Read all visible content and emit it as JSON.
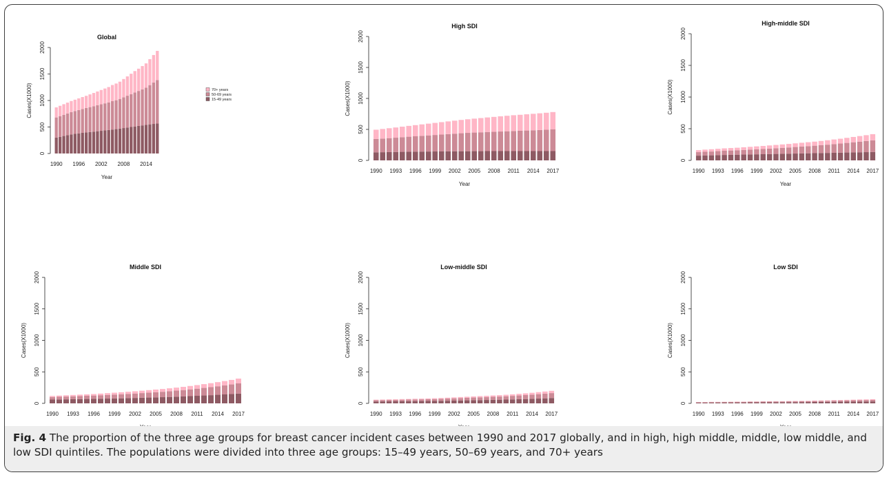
{
  "colors": {
    "c1549": "#8e5a63",
    "c5069": "#cc8a96",
    "c70": "#ffb6c6"
  },
  "caption": {
    "label": "Fig. 4",
    "text": "The proportion of the three age groups for breast cancer incident cases between 1990 and 2017 globally, and in high, high middle, middle, low middle, and low SDI quintiles. The populations were divided into three age groups: 15–49 years, 50–69 years, and 70+ years"
  },
  "legend": {
    "items": [
      {
        "label": "70+ years",
        "color": "#ffb6c6"
      },
      {
        "label": "50-69 years",
        "color": "#cc8a96"
      },
      {
        "label": "15-49 years",
        "color": "#8e5a63"
      }
    ]
  },
  "chart_data": [
    {
      "type": "bar",
      "stacked": true,
      "title": "Global",
      "xlabel": "Year",
      "ylabel": "Cases(X1000)",
      "ylim": [
        0,
        2000
      ],
      "yticks": [
        0,
        500,
        1000,
        1500,
        2000
      ],
      "xtick_labels": [
        "1990",
        "1996",
        "2002",
        "2008",
        "2014"
      ],
      "categories": [
        "1990",
        "1991",
        "1992",
        "1993",
        "1994",
        "1995",
        "1996",
        "1997",
        "1998",
        "1999",
        "2000",
        "2001",
        "2002",
        "2003",
        "2004",
        "2005",
        "2006",
        "2007",
        "2008",
        "2009",
        "2010",
        "2011",
        "2012",
        "2013",
        "2014",
        "2015",
        "2016",
        "2017"
      ],
      "series": [
        {
          "name": "15-49 years",
          "values": [
            300,
            315,
            330,
            345,
            360,
            370,
            380,
            390,
            398,
            405,
            412,
            420,
            428,
            436,
            444,
            452,
            460,
            470,
            480,
            490,
            500,
            510,
            520,
            530,
            540,
            550,
            558,
            566
          ]
        },
        {
          "name": "50-69 years",
          "values": [
            380,
            390,
            400,
            410,
            420,
            430,
            440,
            450,
            460,
            470,
            480,
            490,
            500,
            510,
            520,
            535,
            545,
            560,
            580,
            600,
            620,
            640,
            660,
            680,
            700,
            740,
            780,
            820
          ]
        },
        {
          "name": "70+ years",
          "values": [
            190,
            195,
            200,
            205,
            210,
            215,
            220,
            225,
            230,
            240,
            250,
            260,
            270,
            280,
            290,
            305,
            315,
            325,
            345,
            365,
            385,
            405,
            420,
            440,
            460,
            490,
            520,
            550
          ]
        }
      ]
    },
    {
      "type": "bar",
      "stacked": true,
      "title": "High SDI",
      "xlabel": "Year",
      "ylabel": "Cases(X1000)",
      "ylim": [
        0,
        2000
      ],
      "yticks": [
        0,
        500,
        1000,
        1500,
        2000
      ],
      "xtick_labels": [
        "1990",
        "1993",
        "1996",
        "1999",
        "2002",
        "2005",
        "2008",
        "2011",
        "2014",
        "2017"
      ],
      "categories": [
        "1990",
        "1991",
        "1992",
        "1993",
        "1994",
        "1995",
        "1996",
        "1997",
        "1998",
        "1999",
        "2000",
        "2001",
        "2002",
        "2003",
        "2004",
        "2005",
        "2006",
        "2007",
        "2008",
        "2009",
        "2010",
        "2011",
        "2012",
        "2013",
        "2014",
        "2015",
        "2016",
        "2017"
      ],
      "series": [
        {
          "name": "15-49 years",
          "values": [
            130,
            132,
            134,
            136,
            138,
            140,
            141,
            142,
            143,
            144,
            145,
            146,
            147,
            148,
            148,
            149,
            149,
            150,
            150,
            150,
            150,
            150,
            150,
            150,
            150,
            150,
            150,
            150
          ]
        },
        {
          "name": "50-69 years",
          "values": [
            215,
            220,
            225,
            230,
            236,
            242,
            248,
            254,
            260,
            266,
            272,
            278,
            284,
            290,
            296,
            300,
            304,
            308,
            312,
            316,
            320,
            324,
            328,
            332,
            336,
            340,
            345,
            350
          ]
        },
        {
          "name": "70+ years",
          "values": [
            150,
            155,
            160,
            165,
            170,
            175,
            180,
            185,
            190,
            195,
            200,
            205,
            210,
            215,
            220,
            225,
            230,
            235,
            240,
            245,
            250,
            255,
            258,
            262,
            266,
            270,
            274,
            280
          ]
        }
      ]
    },
    {
      "type": "bar",
      "stacked": true,
      "title": "High-middle SDI",
      "xlabel": "Year",
      "ylabel": "Cases(X1000)",
      "ylim": [
        0,
        2000
      ],
      "yticks": [
        0,
        500,
        1000,
        1500,
        2000
      ],
      "xtick_labels": [
        "1990",
        "1993",
        "1996",
        "1999",
        "2002",
        "2005",
        "2008",
        "2011",
        "2014",
        "2017"
      ],
      "categories": [
        "1990",
        "1991",
        "1992",
        "1993",
        "1994",
        "1995",
        "1996",
        "1997",
        "1998",
        "1999",
        "2000",
        "2001",
        "2002",
        "2003",
        "2004",
        "2005",
        "2006",
        "2007",
        "2008",
        "2009",
        "2010",
        "2011",
        "2012",
        "2013",
        "2014",
        "2015",
        "2016",
        "2017"
      ],
      "series": [
        {
          "name": "15-49 years",
          "values": [
            75,
            78,
            80,
            83,
            86,
            88,
            90,
            92,
            94,
            96,
            98,
            100,
            102,
            104,
            106,
            108,
            110,
            112,
            114,
            116,
            118,
            120,
            122,
            124,
            126,
            128,
            130,
            132
          ]
        },
        {
          "name": "50-69 years",
          "values": [
            55,
            58,
            60,
            63,
            66,
            68,
            70,
            73,
            76,
            79,
            82,
            86,
            90,
            94,
            98,
            103,
            108,
            113,
            118,
            124,
            130,
            137,
            144,
            152,
            160,
            168,
            176,
            185
          ]
        },
        {
          "name": "70+ years",
          "values": [
            32,
            34,
            36,
            37,
            38,
            39,
            40,
            42,
            44,
            46,
            48,
            50,
            52,
            54,
            56,
            58,
            60,
            62,
            64,
            67,
            70,
            73,
            76,
            80,
            84,
            88,
            92,
            97
          ]
        }
      ]
    },
    {
      "type": "bar",
      "stacked": true,
      "title": "Middle SDI",
      "xlabel": "Year",
      "ylabel": "Cases(X1000)",
      "ylim": [
        0,
        2000
      ],
      "yticks": [
        0,
        500,
        1000,
        1500,
        2000
      ],
      "xtick_labels": [
        "1990",
        "1993",
        "1996",
        "1999",
        "2002",
        "2005",
        "2008",
        "2011",
        "2014",
        "2017"
      ],
      "categories": [
        "1990",
        "1991",
        "1992",
        "1993",
        "1994",
        "1995",
        "1996",
        "1997",
        "1998",
        "1999",
        "2000",
        "2001",
        "2002",
        "2003",
        "2004",
        "2005",
        "2006",
        "2007",
        "2008",
        "2009",
        "2010",
        "2011",
        "2012",
        "2013",
        "2014",
        "2015",
        "2016",
        "2017"
      ],
      "series": [
        {
          "name": "15-49 years",
          "values": [
            60,
            62,
            64,
            66,
            68,
            70,
            72,
            74,
            76,
            78,
            80,
            83,
            86,
            89,
            92,
            95,
            98,
            102,
            106,
            110,
            115,
            120,
            125,
            130,
            136,
            142,
            148,
            155
          ]
        },
        {
          "name": "50-69 years",
          "values": [
            40,
            42,
            44,
            46,
            48,
            50,
            52,
            55,
            58,
            61,
            64,
            67,
            70,
            74,
            78,
            82,
            86,
            91,
            96,
            101,
            107,
            113,
            120,
            127,
            135,
            143,
            152,
            162
          ]
        },
        {
          "name": "70+ years",
          "values": [
            18,
            19,
            20,
            21,
            22,
            23,
            24,
            26,
            28,
            30,
            32,
            34,
            36,
            38,
            40,
            42,
            44,
            46,
            48,
            51,
            54,
            57,
            60,
            63,
            66,
            69,
            72,
            76
          ]
        }
      ]
    },
    {
      "type": "bar",
      "stacked": true,
      "title": "Low-middle SDI",
      "xlabel": "Year",
      "ylabel": "Cases(X1000)",
      "ylim": [
        0,
        2000
      ],
      "yticks": [
        0,
        500,
        1000,
        1500,
        2000
      ],
      "xtick_labels": [
        "1990",
        "1993",
        "1996",
        "1999",
        "2002",
        "2005",
        "2008",
        "2011",
        "2014",
        "2017"
      ],
      "categories": [
        "1990",
        "1991",
        "1992",
        "1993",
        "1994",
        "1995",
        "1996",
        "1997",
        "1998",
        "1999",
        "2000",
        "2001",
        "2002",
        "2003",
        "2004",
        "2005",
        "2006",
        "2007",
        "2008",
        "2009",
        "2010",
        "2011",
        "2012",
        "2013",
        "2014",
        "2015",
        "2016",
        "2017"
      ],
      "series": [
        {
          "name": "15-49 years",
          "values": [
            30,
            31,
            32,
            33,
            34,
            35,
            36,
            37,
            38,
            39,
            40,
            42,
            44,
            46,
            48,
            50,
            52,
            54,
            56,
            58,
            60,
            63,
            66,
            69,
            72,
            76,
            80,
            85
          ]
        },
        {
          "name": "50-69 years",
          "values": [
            20,
            21,
            22,
            23,
            24,
            25,
            26,
            27,
            28,
            30,
            32,
            34,
            36,
            38,
            40,
            42,
            44,
            46,
            48,
            50,
            53,
            56,
            59,
            62,
            66,
            70,
            74,
            78
          ]
        },
        {
          "name": "70+ years",
          "values": [
            8,
            8,
            9,
            9,
            10,
            10,
            11,
            11,
            12,
            12,
            13,
            14,
            15,
            16,
            17,
            18,
            19,
            20,
            21,
            22,
            23,
            24,
            26,
            28,
            30,
            32,
            34,
            36
          ]
        }
      ]
    },
    {
      "type": "bar",
      "stacked": true,
      "title": "Low SDI",
      "xlabel": "Year",
      "ylabel": "Cases(X1000)",
      "ylim": [
        0,
        2000
      ],
      "yticks": [
        0,
        500,
        1000,
        1500,
        2000
      ],
      "xtick_labels": [
        "1990",
        "1993",
        "1996",
        "1999",
        "2002",
        "2005",
        "2008",
        "2011",
        "2014",
        "2017"
      ],
      "categories": [
        "1990",
        "1991",
        "1992",
        "1993",
        "1994",
        "1995",
        "1996",
        "1997",
        "1998",
        "1999",
        "2000",
        "2001",
        "2002",
        "2003",
        "2004",
        "2005",
        "2006",
        "2007",
        "2008",
        "2009",
        "2010",
        "2011",
        "2012",
        "2013",
        "2014",
        "2015",
        "2016",
        "2017"
      ],
      "series": [
        {
          "name": "15-49 years",
          "values": [
            12,
            12,
            13,
            13,
            14,
            14,
            15,
            15,
            16,
            16,
            17,
            17,
            18,
            18,
            19,
            19,
            20,
            21,
            22,
            23,
            24,
            25,
            26,
            27,
            28,
            29,
            30,
            31
          ]
        },
        {
          "name": "50-69 years",
          "values": [
            7,
            7,
            8,
            8,
            8,
            9,
            9,
            9,
            10,
            10,
            11,
            11,
            12,
            12,
            13,
            13,
            14,
            14,
            15,
            16,
            17,
            18,
            19,
            20,
            21,
            22,
            23,
            24
          ]
        },
        {
          "name": "70+ years",
          "values": [
            3,
            3,
            3,
            3,
            3,
            3,
            4,
            4,
            4,
            4,
            4,
            5,
            5,
            5,
            5,
            6,
            6,
            6,
            7,
            7,
            7,
            8,
            8,
            9,
            9,
            10,
            10,
            11
          ]
        }
      ]
    }
  ]
}
